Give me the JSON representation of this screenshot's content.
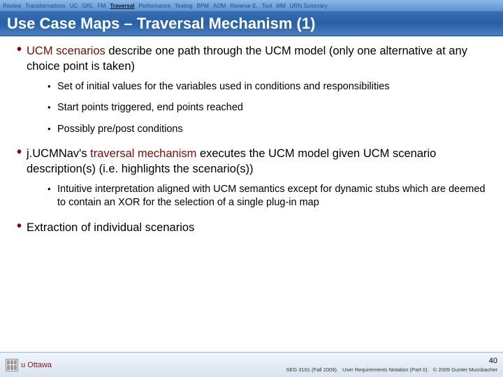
{
  "nav": {
    "items": [
      {
        "label": "Review",
        "active": false
      },
      {
        "label": "Transformations",
        "active": false
      },
      {
        "label": "UC",
        "active": false
      },
      {
        "label": "GRL",
        "active": false
      },
      {
        "label": "FM",
        "active": false
      },
      {
        "label": "Traversal",
        "active": true
      },
      {
        "label": "Performance",
        "active": false
      },
      {
        "label": "Testing",
        "active": false
      },
      {
        "label": "BPM",
        "active": false
      },
      {
        "label": "AOM",
        "active": false
      },
      {
        "label": "Reverse E.",
        "active": false
      },
      {
        "label": "Tool",
        "active": false
      },
      {
        "label": "MM",
        "active": false
      },
      {
        "label": "URN Summary",
        "active": false
      }
    ]
  },
  "title": "Use Case Maps – Traversal Mechanism (1)",
  "bullets": [
    {
      "html": "<span class='hl'>UCM scenarios</span> describe one path through the UCM model (only one alternative at any choice point is taken)",
      "subs": [
        "Set of initial values for the variables used in conditions and responsibilities",
        "Start points triggered, end points reached",
        "Possibly pre/post conditions"
      ]
    },
    {
      "html": "j.UCMNav's <span class='hl'>traversal mechanism</span> executes the UCM model given UCM scenario description(s) (i.e. highlights the scenario(s))",
      "subs": [
        "Intuitive interpretation aligned with UCM semantics except for dynamic stubs which are deemed to contain an XOR for the selection of a single plug-in map"
      ]
    },
    {
      "html": "Extraction of individual scenarios",
      "subs": []
    }
  ],
  "footer": {
    "logo_text": "u Ottawa",
    "page": "40",
    "course": "SEG 3101 (Fall 2009).",
    "doc": "User Requirements Notation (Part II).",
    "copyright": "© 2009 Gunter Mussbacher"
  }
}
